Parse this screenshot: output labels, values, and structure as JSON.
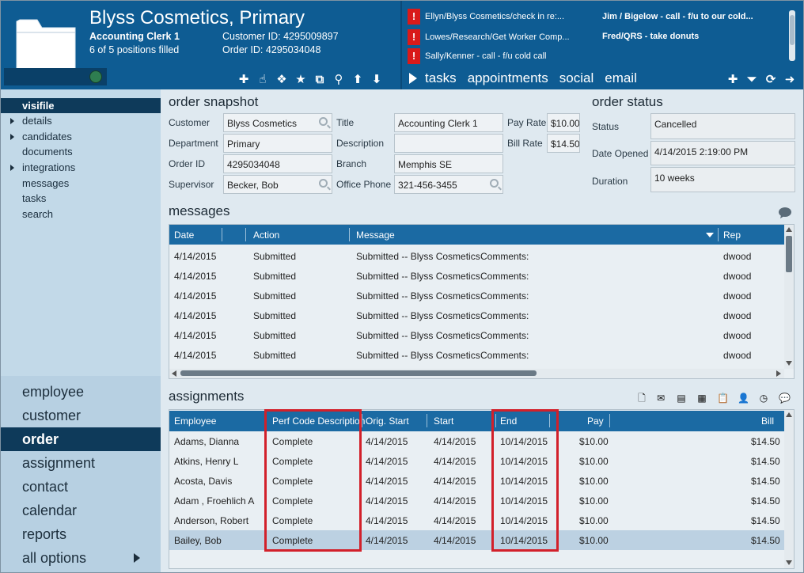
{
  "header": {
    "title": "Blyss Cosmetics, Primary",
    "position_title": "Accounting Clerk 1",
    "positions_filled": "6 of 5 positions filled",
    "customer_id_label": "Customer ID: 4295009897",
    "order_id_label": "Order ID: 4295034048",
    "tabs": [
      "tasks",
      "appointments",
      "social",
      "email"
    ]
  },
  "notices": {
    "left": [
      "Ellyn/Blyss Cosmetics/check in re:...",
      "Lowes/Research/Get Worker Comp...",
      "Sally/Kenner - call - f/u cold call"
    ],
    "right": [
      "Jim / Bigelow - call - f/u to our cold...",
      "Fred/QRS - take donuts"
    ]
  },
  "nav": {
    "sub_items": [
      "visifile",
      "details",
      "candidates",
      "documents",
      "integrations",
      "messages",
      "tasks",
      "search"
    ],
    "main_items": [
      "employee",
      "customer",
      "order",
      "assignment",
      "contact",
      "calendar",
      "reports",
      "all options"
    ]
  },
  "snapshot": {
    "title": "order snapshot",
    "customer_label": "Customer",
    "customer_value": "Blyss Cosmetics",
    "department_label": "Department",
    "department_value": "Primary",
    "order_id_label": "Order ID",
    "order_id_value": "4295034048",
    "supervisor_label": "Supervisor",
    "supervisor_value": "Becker, Bob",
    "title_label": "Title",
    "title_value": "Accounting Clerk 1",
    "description_label": "Description",
    "description_value": "",
    "branch_label": "Branch",
    "branch_value": "Memphis SE",
    "office_phone_label": "Office Phone",
    "office_phone_value": "321-456-3455",
    "pay_rate_label": "Pay Rate",
    "pay_rate_value": "$10.00",
    "bill_rate_label": "Bill Rate",
    "bill_rate_value": "$14.50"
  },
  "order_status": {
    "title": "order status",
    "status_label": "Status",
    "status_value": "Cancelled",
    "date_opened_label": "Date Opened",
    "date_opened_value": "4/14/2015 2:19:00 PM",
    "duration_label": "Duration",
    "duration_value": "10 weeks"
  },
  "messages": {
    "title": "messages",
    "columns": [
      "Date",
      "Action",
      "Message",
      "Rep"
    ],
    "rows": [
      {
        "date": "4/14/2015",
        "action": "Submitted",
        "message": "Submitted  --  Blyss Cosmetics",
        "comments": "Comments:",
        "rep": "dwood"
      },
      {
        "date": "4/14/2015",
        "action": "Submitted",
        "message": "Submitted  --  Blyss Cosmetics",
        "comments": "Comments:",
        "rep": "dwood"
      },
      {
        "date": "4/14/2015",
        "action": "Submitted",
        "message": "Submitted  --  Blyss Cosmetics",
        "comments": "Comments:",
        "rep": "dwood"
      },
      {
        "date": "4/14/2015",
        "action": "Submitted",
        "message": "Submitted  --  Blyss Cosmetics",
        "comments": "Comments:",
        "rep": "dwood"
      },
      {
        "date": "4/14/2015",
        "action": "Submitted",
        "message": "Submitted  --  Blyss Cosmetics",
        "comments": "Comments:",
        "rep": "dwood"
      },
      {
        "date": "4/14/2015",
        "action": "Submitted",
        "message": "Submitted  --  Blyss Cosmetics",
        "comments": "Comments:",
        "rep": "dwood"
      }
    ]
  },
  "assignments": {
    "title": "assignments",
    "columns": [
      "Employee",
      "Perf Code Description",
      "Orig. Start",
      "Start",
      "End",
      "Pay",
      "Bill"
    ],
    "rows": [
      {
        "employee": "Adams, Dianna",
        "perf": "Complete",
        "orig_start": "4/14/2015",
        "start": "4/14/2015",
        "end": "10/14/2015",
        "pay": "$10.00",
        "bill": "$14.50"
      },
      {
        "employee": "Atkins, Henry L",
        "perf": "Complete",
        "orig_start": "4/14/2015",
        "start": "4/14/2015",
        "end": "10/14/2015",
        "pay": "$10.00",
        "bill": "$14.50"
      },
      {
        "employee": "Acosta, Davis",
        "perf": "Complete",
        "orig_start": "4/14/2015",
        "start": "4/14/2015",
        "end": "10/14/2015",
        "pay": "$10.00",
        "bill": "$14.50"
      },
      {
        "employee": "Adam , Froehlich A",
        "perf": "Complete",
        "orig_start": "4/14/2015",
        "start": "4/14/2015",
        "end": "10/14/2015",
        "pay": "$10.00",
        "bill": "$14.50"
      },
      {
        "employee": "Anderson, Robert",
        "perf": "Complete",
        "orig_start": "4/14/2015",
        "start": "4/14/2015",
        "end": "10/14/2015",
        "pay": "$10.00",
        "bill": "$14.50"
      },
      {
        "employee": "Bailey, Bob",
        "perf": "Complete",
        "orig_start": "4/14/2015",
        "start": "4/14/2015",
        "end": "10/14/2015",
        "pay": "$10.00",
        "bill": "$14.50"
      }
    ]
  }
}
